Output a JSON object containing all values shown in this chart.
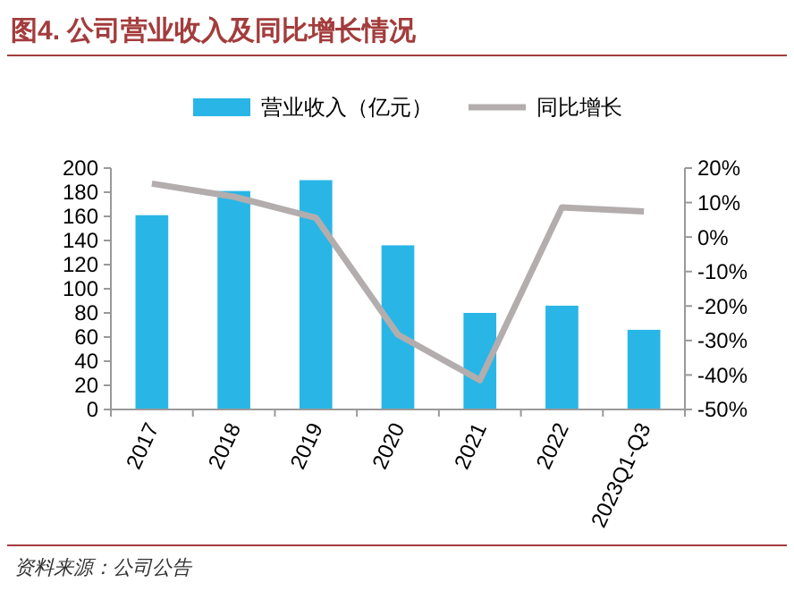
{
  "chart_data": {
    "type": "bar",
    "title": "图4. 公司营业收入及同比增长情况",
    "categories": [
      "2017",
      "2018",
      "2019",
      "2020",
      "2021",
      "2022",
      "2023Q1-Q3"
    ],
    "series": [
      {
        "name": "营业收入（亿元）",
        "color": "#29b6e6",
        "values": [
          161,
          181,
          190,
          136,
          80,
          86,
          66
        ]
      },
      {
        "name": "同比增长",
        "type": "line",
        "axis": "y2",
        "color": "#b3adad",
        "values": [
          15.5,
          11.7,
          5.6,
          -28.3,
          -41.5,
          8.6,
          7.4
        ]
      }
    ],
    "ylim": [
      0,
      200
    ],
    "yticks": [
      0,
      20,
      40,
      60,
      80,
      100,
      120,
      140,
      160,
      180,
      200
    ],
    "y2lim": [
      -50,
      20
    ],
    "y2ticks": [
      {
        "value": -50,
        "label": "-50%"
      },
      {
        "value": -40,
        "label": "-40%"
      },
      {
        "value": -30,
        "label": "-30%"
      },
      {
        "value": -20,
        "label": "-20%"
      },
      {
        "value": -10,
        "label": "-10%"
      },
      {
        "value": 0,
        "label": "0%"
      },
      {
        "value": 10,
        "label": "10%"
      },
      {
        "value": 20,
        "label": "20%"
      }
    ],
    "legend": "top",
    "marker": "none",
    "line_style": "solid",
    "grid": false,
    "annotations": [
      "资料来源：公司公告"
    ]
  }
}
